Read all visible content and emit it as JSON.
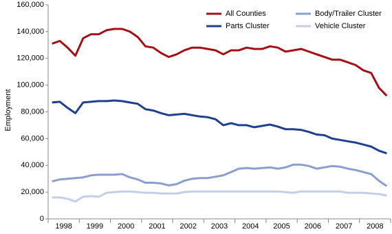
{
  "chart_data": {
    "type": "line",
    "y_label": "Employment",
    "categories": [
      "1998",
      null,
      null,
      null,
      "1999",
      null,
      null,
      null,
      "2000",
      null,
      null,
      null,
      "2001",
      null,
      null,
      null,
      "2002",
      null,
      null,
      null,
      "2003",
      null,
      null,
      null,
      "2004",
      null,
      null,
      null,
      "2005",
      null,
      null,
      null,
      "2006",
      null,
      null,
      null,
      "2007",
      null,
      null,
      null,
      "2008",
      null,
      null,
      null
    ],
    "ylim": [
      0,
      160000
    ],
    "yticks": [
      0,
      {
        "value": 20000,
        "label": "20,000"
      },
      {
        "value": 40000,
        "label": "40,000"
      },
      {
        "value": 60000,
        "label": "60,000"
      },
      {
        "value": 80000,
        "label": "80,000"
      },
      {
        "value": 100000,
        "label": "100,000"
      },
      {
        "value": 120000,
        "label": "120,000"
      },
      {
        "value": 140000,
        "label": "140,000"
      },
      {
        "value": 160000,
        "label": "160,000"
      }
    ],
    "grid": false,
    "legend": "top-right",
    "series": [
      {
        "name": "All Counties",
        "color": "#a50f15",
        "values": [
          131000,
          133000,
          128000,
          122000,
          135000,
          138000,
          138000,
          141000,
          142000,
          142000,
          140000,
          136000,
          129000,
          128000,
          124000,
          121000,
          123000,
          126000,
          128000,
          128000,
          127000,
          126000,
          123000,
          126000,
          126000,
          128000,
          127000,
          127000,
          129000,
          128000,
          125000,
          126000,
          127000,
          125000,
          123000,
          121000,
          119000,
          119000,
          117000,
          115000,
          111000,
          109000,
          98000,
          92000
        ]
      },
      {
        "name": "Parts Cluster",
        "color": "#1f3f8f",
        "values": [
          87000,
          87500,
          83000,
          79000,
          87000,
          87500,
          88000,
          88000,
          88500,
          88000,
          87000,
          86000,
          82000,
          81000,
          79000,
          77500,
          78000,
          78500,
          77500,
          76500,
          76000,
          74500,
          70000,
          71500,
          70000,
          70000,
          68500,
          69500,
          70500,
          69000,
          67000,
          67000,
          66500,
          65000,
          63000,
          62500,
          60000,
          59000,
          58000,
          57000,
          55500,
          54000,
          51000,
          49000
        ]
      },
      {
        "name": "Body/Trailer Cluster",
        "color": "#8b9fcc",
        "values": [
          28000,
          29500,
          30000,
          30500,
          31000,
          32500,
          33000,
          33000,
          33000,
          33500,
          31000,
          29500,
          27000,
          27000,
          26500,
          25000,
          26000,
          28500,
          30000,
          30500,
          30500,
          31500,
          32500,
          35000,
          37500,
          38000,
          37500,
          38000,
          38500,
          37500,
          38500,
          40500,
          40500,
          39500,
          37500,
          38500,
          39500,
          39000,
          37500,
          36500,
          35000,
          33500,
          28500,
          24500
        ]
      },
      {
        "name": "Vehicle Cluster",
        "color": "#c4cee6",
        "values": [
          16000,
          16000,
          15000,
          13000,
          16500,
          17000,
          16500,
          19500,
          20000,
          20500,
          20500,
          20000,
          19500,
          19500,
          19000,
          19000,
          19000,
          20000,
          20500,
          20500,
          20500,
          20500,
          20500,
          20500,
          20500,
          20500,
          20500,
          20500,
          20500,
          20500,
          20000,
          19500,
          20500,
          20500,
          20500,
          20500,
          20500,
          20500,
          19500,
          19500,
          19500,
          19000,
          18500,
          17500
        ]
      }
    ]
  }
}
